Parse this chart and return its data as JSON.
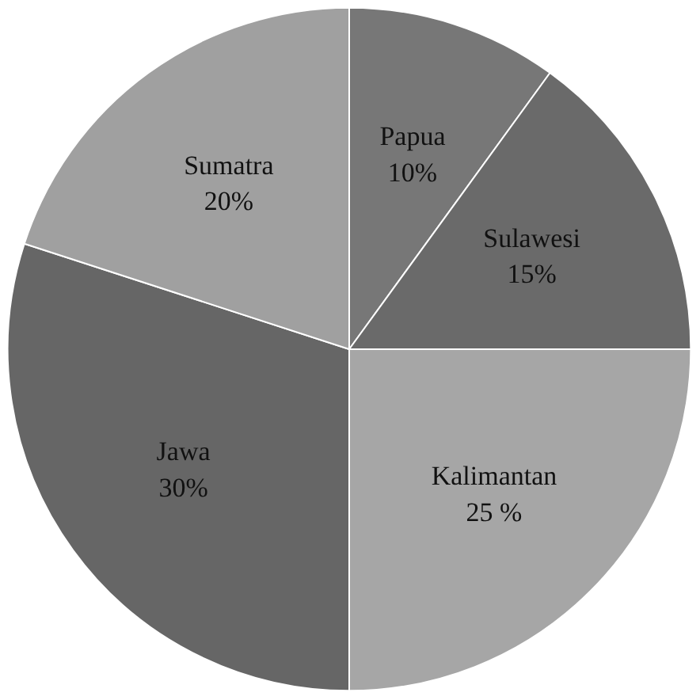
{
  "chart_data": {
    "type": "pie",
    "categories": [
      "Papua",
      "Sulawesi",
      "Kalimantan",
      "Jawa",
      "Sumatra"
    ],
    "values": [
      10,
      15,
      25,
      30,
      20
    ],
    "value_labels": [
      "10%",
      "15%",
      "25 %",
      "30%",
      "20%"
    ],
    "colors": [
      "#777777",
      "#6a6a6a",
      "#a6a6a6",
      "#666666",
      "#a0a0a0"
    ]
  }
}
